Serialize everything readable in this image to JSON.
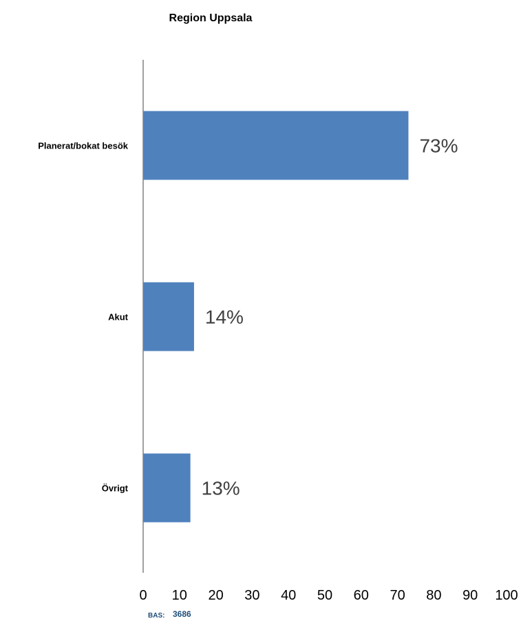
{
  "chart_data": {
    "type": "bar",
    "orientation": "horizontal",
    "title": "Region Uppsala",
    "categories": [
      "Planerat/bokat besök",
      "Akut",
      "Övrigt"
    ],
    "values": [
      73,
      14,
      13
    ],
    "data_labels": [
      "73%",
      "14%",
      "13%"
    ],
    "xlim": [
      0,
      100
    ],
    "x_ticks": [
      "0",
      "10",
      "20",
      "30",
      "40",
      "50",
      "60",
      "70",
      "80",
      "90",
      "100"
    ],
    "grid": false,
    "legend": "none",
    "bar_color": "#4F81BD"
  },
  "footer": {
    "bas_label": "BAS:",
    "bas_value": "3686",
    "color": "#1F4E79"
  }
}
